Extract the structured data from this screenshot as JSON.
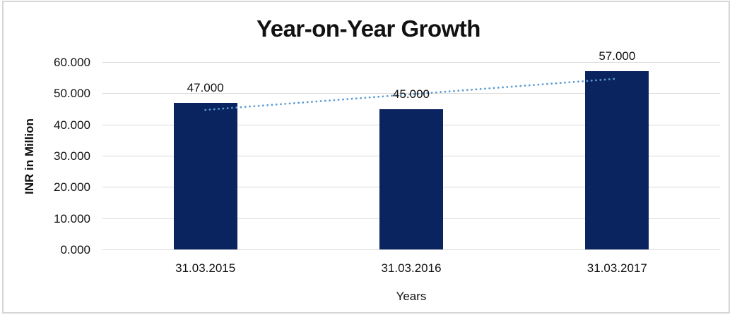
{
  "chart_data": {
    "type": "bar",
    "title": "Year-on-Year Growth",
    "xlabel": "Years",
    "ylabel": "INR in Million",
    "categories": [
      "31.03.2015",
      "31.03.2016",
      "31.03.2017"
    ],
    "values": [
      47000,
      45000,
      57000
    ],
    "value_labels": [
      "47.000",
      "45.000",
      "57.000"
    ],
    "ylim": [
      0,
      60000
    ],
    "yticks": [
      0,
      10000,
      20000,
      30000,
      40000,
      50000,
      60000
    ],
    "ytick_labels": [
      "0.000",
      "10.000",
      "20.000",
      "30.000",
      "40.000",
      "50.000",
      "60.000"
    ],
    "grid": true,
    "legend": false,
    "bar_color": "#0A245F",
    "gridline_color": "#d9d9d9",
    "trendline": {
      "type": "linear",
      "style": "dotted",
      "color": "#5B9BD5",
      "start_value": 44667,
      "end_value": 54667
    }
  }
}
